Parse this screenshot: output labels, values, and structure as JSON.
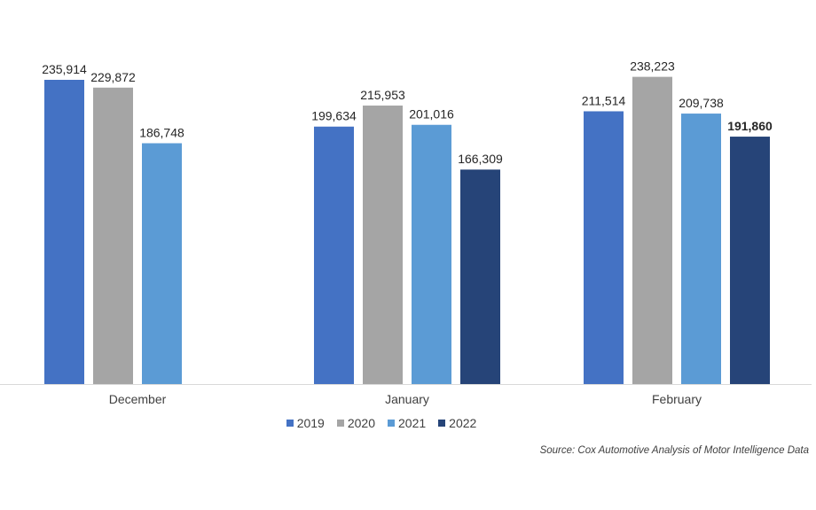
{
  "chart_data": {
    "type": "bar",
    "categories": [
      "December",
      "January",
      "February"
    ],
    "series": [
      {
        "name": "2019",
        "color": "#4472C4",
        "values": [
          235914,
          199634,
          211514
        ]
      },
      {
        "name": "2020",
        "color": "#A5A5A5",
        "values": [
          229872,
          215953,
          238223
        ]
      },
      {
        "name": "2021",
        "color": "#5B9BD5",
        "values": [
          186748,
          201016,
          209738
        ]
      },
      {
        "name": "2022",
        "color": "#264478",
        "values": [
          null,
          166309,
          191860
        ]
      }
    ],
    "data_labels": true,
    "bold_labels": [
      {
        "series": "2022",
        "category": "February"
      }
    ],
    "ylim": [
      0,
      250000
    ],
    "grid": false,
    "legend_placement": "bottom",
    "source": "Source: Cox Automotive Analysis of Motor Intelligence Data"
  }
}
